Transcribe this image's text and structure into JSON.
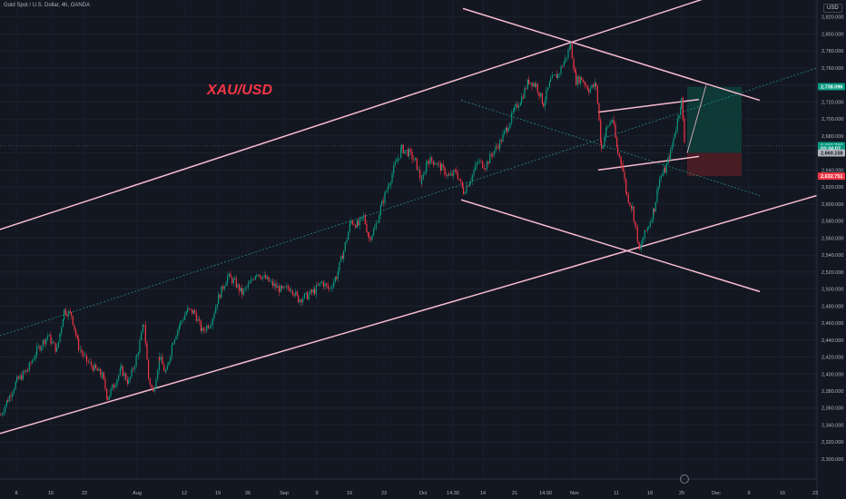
{
  "header": {
    "title": "Gold Spot / U.S. Dollar, 4h, OANDA",
    "currency": "USD"
  },
  "annotation": {
    "symbol_label": "XAU/USD"
  },
  "icons": {
    "info": "info-icon"
  },
  "colors": {
    "background": "#131722",
    "up": "#089981",
    "down": "#f23645",
    "channel": "#f8bbd0",
    "midline": "#26a69a",
    "target_zone": "#0e3b39",
    "stop_zone": "#4a1c24"
  },
  "chart_data": {
    "type": "candlestick",
    "title": "Gold Spot / U.S. Dollar, 4h, OANDA",
    "ylim": [
      2285,
      2840
    ],
    "y_ticks": [
      2300,
      2320,
      2340,
      2360,
      2380,
      2400,
      2420,
      2440,
      2460,
      2480,
      2500,
      2520,
      2540,
      2560,
      2580,
      2600,
      2620,
      2640,
      2660,
      2680,
      2700,
      2720,
      2740,
      2760,
      2780,
      2800,
      2820
    ],
    "y_tick_labels": [
      "2,300.000",
      "2,320.000",
      "2,340.000",
      "2,360.000",
      "2,380.000",
      "2,400.000",
      "2,420.000",
      "2,440.000",
      "2,460.000",
      "2,480.000",
      "2,500.000",
      "2,520.000",
      "2,540.000",
      "2,560.000",
      "2,580.000",
      "2,600.000",
      "2,620.000",
      "2,640.000",
      "2,660.000",
      "2,680.000",
      "2,700.000",
      "2,720.000",
      "2,740.000",
      "2,760.000",
      "2,780.000",
      "2,800.000",
      "2,820.000"
    ],
    "x_tick_labels": [
      "8",
      "15",
      "22",
      "Aug",
      "12",
      "19",
      "26",
      "Sep",
      "9",
      "16",
      "23",
      "Oct",
      "14:30",
      "14",
      "21",
      "14:30",
      "Nov",
      "11",
      "18",
      "25",
      "Dec",
      "9",
      "16",
      "23"
    ],
    "price_path": [
      [
        0,
        2352
      ],
      [
        8,
        2370
      ],
      [
        18,
        2392
      ],
      [
        30,
        2405
      ],
      [
        40,
        2428
      ],
      [
        52,
        2445
      ],
      [
        62,
        2428
      ],
      [
        70,
        2475
      ],
      [
        78,
        2470
      ],
      [
        86,
        2432
      ],
      [
        95,
        2415
      ],
      [
        105,
        2405
      ],
      [
        112,
        2398
      ],
      [
        118,
        2372
      ],
      [
        125,
        2388
      ],
      [
        133,
        2405
      ],
      [
        141,
        2390
      ],
      [
        150,
        2420
      ],
      [
        158,
        2460
      ],
      [
        163,
        2395
      ],
      [
        168,
        2378
      ],
      [
        175,
        2420
      ],
      [
        182,
        2400
      ],
      [
        190,
        2440
      ],
      [
        198,
        2460
      ],
      [
        206,
        2475
      ],
      [
        214,
        2472
      ],
      [
        222,
        2450
      ],
      [
        232,
        2462
      ],
      [
        240,
        2490
      ],
      [
        250,
        2515
      ],
      [
        258,
        2508
      ],
      [
        266,
        2495
      ],
      [
        274,
        2505
      ],
      [
        282,
        2520
      ],
      [
        292,
        2512
      ],
      [
        300,
        2505
      ],
      [
        310,
        2498
      ],
      [
        320,
        2502
      ],
      [
        328,
        2488
      ],
      [
        338,
        2492
      ],
      [
        346,
        2498
      ],
      [
        354,
        2508
      ],
      [
        362,
        2500
      ],
      [
        370,
        2515
      ],
      [
        378,
        2545
      ],
      [
        386,
        2580
      ],
      [
        394,
        2575
      ],
      [
        400,
        2585
      ],
      [
        406,
        2560
      ],
      [
        412,
        2570
      ],
      [
        420,
        2600
      ],
      [
        428,
        2625
      ],
      [
        436,
        2650
      ],
      [
        442,
        2665
      ],
      [
        450,
        2660
      ],
      [
        457,
        2650
      ],
      [
        464,
        2625
      ],
      [
        470,
        2652
      ],
      [
        478,
        2650
      ],
      [
        486,
        2642
      ],
      [
        494,
        2632
      ],
      [
        502,
        2638
      ],
      [
        510,
        2615
      ],
      [
        518,
        2630
      ],
      [
        526,
        2650
      ],
      [
        534,
        2645
      ],
      [
        542,
        2660
      ],
      [
        550,
        2672
      ],
      [
        558,
        2690
      ],
      [
        566,
        2710
      ],
      [
        574,
        2725
      ],
      [
        582,
        2745
      ],
      [
        590,
        2740
      ],
      [
        598,
        2718
      ],
      [
        606,
        2745
      ],
      [
        614,
        2752
      ],
      [
        622,
        2770
      ],
      [
        628,
        2787
      ],
      [
        634,
        2745
      ],
      [
        640,
        2748
      ],
      [
        648,
        2735
      ],
      [
        656,
        2740
      ],
      [
        662,
        2665
      ],
      [
        668,
        2690
      ],
      [
        674,
        2700
      ],
      [
        680,
        2660
      ],
      [
        684,
        2650
      ],
      [
        690,
        2610
      ],
      [
        696,
        2595
      ],
      [
        700,
        2570
      ],
      [
        704,
        2545
      ],
      [
        708,
        2560
      ],
      [
        714,
        2575
      ],
      [
        720,
        2595
      ],
      [
        726,
        2630
      ],
      [
        732,
        2640
      ],
      [
        738,
        2660
      ],
      [
        744,
        2690
      ],
      [
        750,
        2722
      ],
      [
        754,
        2665
      ]
    ],
    "current_price": 2668.738,
    "price_labels": [
      {
        "label": "2,738.096",
        "value": 2738.096,
        "kind": "target"
      },
      {
        "label": "2,668.738",
        "value": 2668.738,
        "kind": "current"
      },
      {
        "label": "03:34:07",
        "value": 2665.5,
        "kind": "countdown"
      },
      {
        "label": "2,660.158",
        "value": 2660.158,
        "kind": "entry"
      },
      {
        "label": "2,632.751",
        "value": 2632.751,
        "kind": "stop"
      }
    ],
    "trendlines": [
      {
        "name": "upper-channel",
        "x1": 0,
        "y1": 2570,
        "x2": 800,
        "y2": 2850,
        "style": "solid"
      },
      {
        "name": "lower-channel",
        "x1": 0,
        "y1": 2330,
        "x2": 932,
        "y2": 2620,
        "style": "solid"
      },
      {
        "name": "channel-midline",
        "x1": 0,
        "y1": 2445,
        "x2": 900,
        "y2": 2760,
        "style": "dashed"
      },
      {
        "name": "descending-upper",
        "x1": 510,
        "y1": 2830,
        "x2": 837,
        "y2": 2722,
        "style": "solid"
      },
      {
        "name": "descending-lower",
        "x1": 508,
        "y1": 2605,
        "x2": 837,
        "y2": 2497,
        "style": "solid"
      },
      {
        "name": "descending-midline",
        "x1": 508,
        "y1": 2722,
        "x2": 837,
        "y2": 2610,
        "style": "dashed"
      },
      {
        "name": "flag-upper",
        "x1": 659,
        "y1": 2708,
        "x2": 770,
        "y2": 2723,
        "style": "solid"
      },
      {
        "name": "flag-lower",
        "x1": 659,
        "y1": 2640,
        "x2": 770,
        "y2": 2656,
        "style": "solid"
      },
      {
        "name": "projection-path",
        "x1": 757,
        "y1": 2660,
        "x2": 778,
        "y2": 2740,
        "style": "solid"
      }
    ],
    "position": {
      "entry": 2660.158,
      "target": 2738.096,
      "stop": 2632.751,
      "x_start": 757,
      "x_end": 817
    }
  }
}
